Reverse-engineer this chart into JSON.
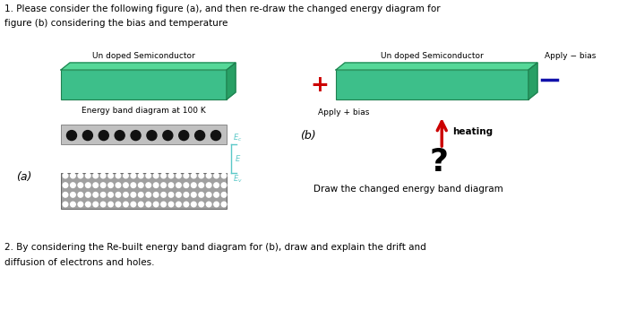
{
  "title_line1": "1. Please consider the following figure (a), and then re-draw the changed energy diagram for",
  "title_line2": "figure (b) considering the bias and temperature",
  "fig_a_label": "(a)",
  "fig_b_label": "(b)",
  "semiconductor_label_a": "Un doped Semiconductor",
  "semiconductor_label_b": "Un doped Semiconductor",
  "energy_band_label": "Energy band diagram at 100 K",
  "apply_plus_label": "Apply + bias",
  "apply_minus_label": "Apply − bias",
  "heating_label": "heating",
  "question_mark": "?",
  "draw_label": "Draw the changed energy band diagram",
  "q2_line1": "2. By considering the Re-built energy band diagram for (b), draw and explain the drift and",
  "q2_line2": "diffusion of electrons and holes.",
  "semiconductor_color": "#3dbf8a",
  "bracket_color": "#5bc8c8",
  "plus_color": "#cc0000",
  "minus_color": "#1111aa",
  "arrow_color": "#cc0000",
  "background_color": "#ffffff"
}
